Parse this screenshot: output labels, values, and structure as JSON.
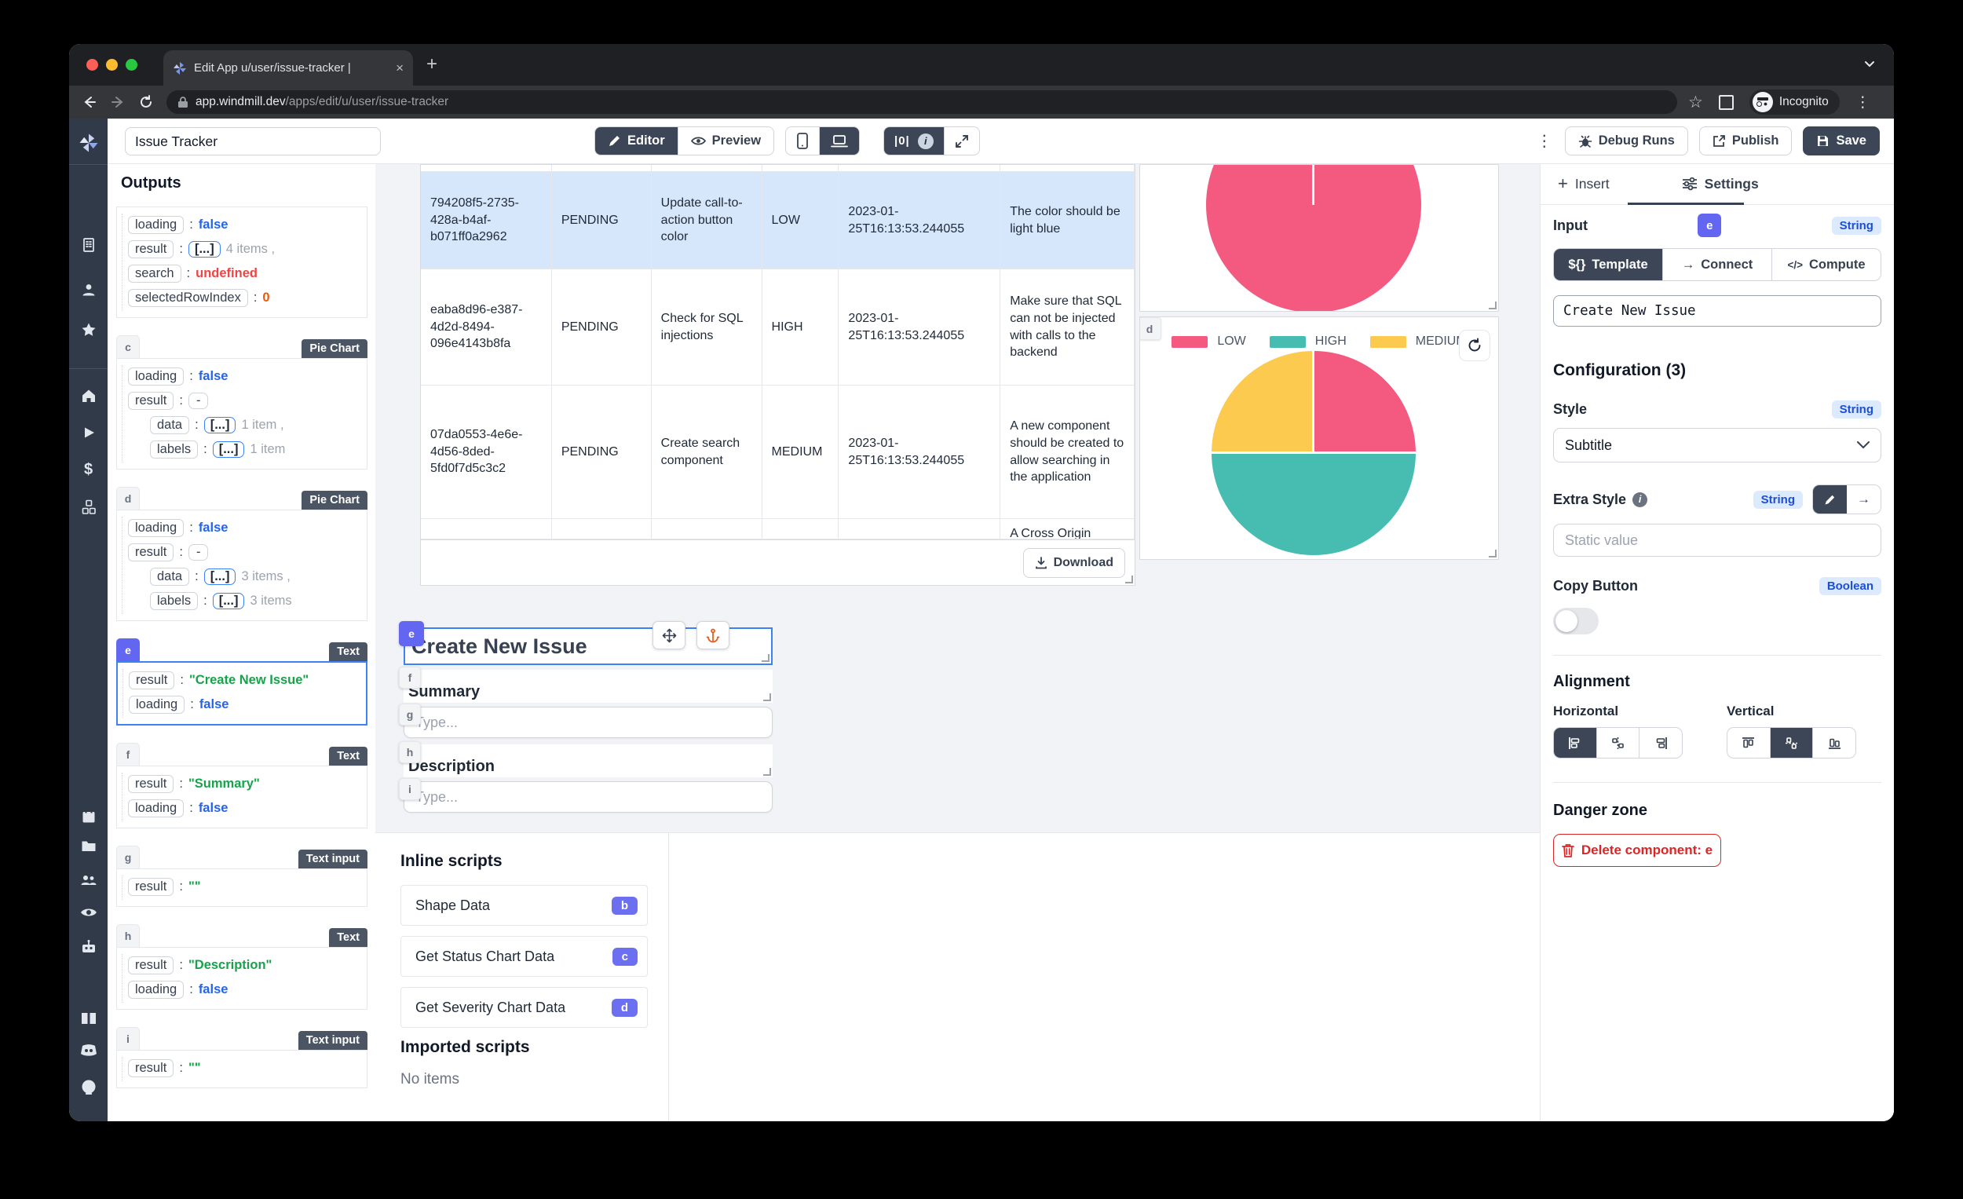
{
  "browser": {
    "tab_title": "Edit App u/user/issue-tracker |",
    "url_host": "app.windmill.dev",
    "url_path": "/apps/edit/u/user/issue-tracker",
    "incognito_label": "Incognito"
  },
  "icons": {
    "plus": "+",
    "close": "×",
    "dots_v": "⋮",
    "star": "☆",
    "dollar": "$",
    "arrow_right": "→",
    "info": "i",
    "zero_pipes": "|0|",
    "template_sigil": "${}",
    "compute_sigil": "</>"
  },
  "topbar": {
    "app_name": "Issue Tracker",
    "editor": "Editor",
    "preview": "Preview",
    "debug_runs": "Debug Runs",
    "publish": "Publish",
    "save": "Save"
  },
  "outputs": {
    "title": "Outputs",
    "cards": [
      {
        "badge": null,
        "type": null,
        "selected": false,
        "rows": [
          {
            "key": "loading",
            "value": "false",
            "vclass": "bool"
          },
          {
            "key": "result",
            "value": "[...]",
            "vclass": "pill",
            "suffix": "4 items ,"
          },
          {
            "key": "search",
            "value": "undefined",
            "vclass": "undef"
          },
          {
            "key": "selectedRowIndex",
            "value": "0",
            "vclass": "num"
          }
        ]
      },
      {
        "badge": "c",
        "type": "Pie Chart",
        "selected": false,
        "rows": [
          {
            "key": "loading",
            "value": "false",
            "vclass": "bool"
          },
          {
            "key": "result",
            "value": "-",
            "vclass": "dash"
          },
          {
            "key": "data",
            "value": "[...]",
            "vclass": "pill",
            "suffix": "1 item ,",
            "indent": true
          },
          {
            "key": "labels",
            "value": "[...]",
            "vclass": "pill",
            "suffix": "1 item",
            "indent": true
          }
        ]
      },
      {
        "badge": "d",
        "type": "Pie Chart",
        "selected": false,
        "rows": [
          {
            "key": "loading",
            "value": "false",
            "vclass": "bool"
          },
          {
            "key": "result",
            "value": "-",
            "vclass": "dash"
          },
          {
            "key": "data",
            "value": "[...]",
            "vclass": "pill",
            "suffix": "3 items ,",
            "indent": true
          },
          {
            "key": "labels",
            "value": "[...]",
            "vclass": "pill",
            "suffix": "3 items",
            "indent": true
          }
        ]
      },
      {
        "badge": "e",
        "type": "Text",
        "selected": true,
        "rows": [
          {
            "key": "result",
            "value": "\"Create New Issue\"",
            "vclass": "str"
          },
          {
            "key": "loading",
            "value": "false",
            "vclass": "bool"
          }
        ]
      },
      {
        "badge": "f",
        "type": "Text",
        "selected": false,
        "rows": [
          {
            "key": "result",
            "value": "\"Summary\"",
            "vclass": "str"
          },
          {
            "key": "loading",
            "value": "false",
            "vclass": "bool"
          }
        ]
      },
      {
        "badge": "g",
        "type": "Text input",
        "selected": false,
        "rows": [
          {
            "key": "result",
            "value": "\"\"",
            "vclass": "str"
          }
        ]
      },
      {
        "badge": "h",
        "type": "Text",
        "selected": false,
        "rows": [
          {
            "key": "result",
            "value": "\"Description\"",
            "vclass": "str"
          },
          {
            "key": "loading",
            "value": "false",
            "vclass": "bool"
          }
        ]
      },
      {
        "badge": "i",
        "type": "Text input",
        "selected": false,
        "rows": [
          {
            "key": "result",
            "value": "\"\"",
            "vclass": "str"
          }
        ]
      }
    ]
  },
  "canvas": {
    "table": {
      "rows": [
        [
          "794208f5-2735-428a-b4af-b071ff0a2962",
          "PENDING",
          "Update call-to-action button color",
          "LOW",
          "2023-01-25T16:13:53.244055",
          "The color should be light blue"
        ],
        [
          "eaba8d96-e387-4d2d-8494-096e4143b8fa",
          "PENDING",
          "Check for SQL injections",
          "HIGH",
          "2023-01-25T16:13:53.244055",
          "Make sure that SQL can not be injected with calls to the backend"
        ],
        [
          "07da0553-4e6e-4d56-8ded-5fd0f7d5c3c2",
          "PENDING",
          "Create search component",
          "MEDIUM",
          "2023-01-25T16:13:53.244055",
          "A new component should be created to allow searching in the application"
        ]
      ],
      "partial_cell": "A Cross Origin",
      "download": "Download"
    },
    "legend": [
      {
        "label": "LOW",
        "color": "#f4597f"
      },
      {
        "label": "HIGH",
        "color": "#47bdb2"
      },
      {
        "label": "MEDIUM",
        "color": "#fbca4f"
      }
    ],
    "badge_d": "d"
  },
  "form": {
    "badge_e": "e",
    "badge_f": "f",
    "badge_g": "g",
    "badge_h": "h",
    "badge_i": "i",
    "title": "Create New Issue",
    "summary": "Summary",
    "description": "Description",
    "placeholder": "Type..."
  },
  "scripts": {
    "inline_title": "Inline scripts",
    "items": [
      {
        "label": "Shape Data",
        "badge": "b"
      },
      {
        "label": "Get Status Chart Data",
        "badge": "c"
      },
      {
        "label": "Get Severity Chart Data",
        "badge": "d"
      }
    ],
    "imported_title": "Imported scripts",
    "empty": "No items"
  },
  "settings": {
    "insert_tab": "Insert",
    "settings_tab": "Settings",
    "input_label": "Input",
    "component_badge": "e",
    "type_string": "String",
    "type_boolean": "Boolean",
    "seg_template": "Template",
    "seg_connect": "Connect",
    "seg_compute": "Compute",
    "template_value": "Create New Issue",
    "configuration": "Configuration (3)",
    "style_label": "Style",
    "style_value": "Subtitle",
    "extra_style_label": "Extra Style",
    "static_placeholder": "Static value",
    "copy_button_label": "Copy Button",
    "alignment": "Alignment",
    "horizontal": "Horizontal",
    "vertical": "Vertical",
    "danger": "Danger zone",
    "delete_label": "Delete component: e"
  },
  "colors": {
    "accent_indigo": "#6366f1",
    "accent_blue": "#3b82f6",
    "dark_button": "#3c4656",
    "pie_pink": "#f4597f",
    "pie_teal": "#47bdb2",
    "pie_yellow": "#fbca4f",
    "danger_red": "#dc2626",
    "selected_row": "#d7e7fb"
  },
  "chart_data": [
    {
      "type": "pie",
      "name": "status-pie",
      "legend_visible": false,
      "fractions": [
        1.0
      ],
      "colors": [
        "#f4597f"
      ]
    },
    {
      "type": "pie",
      "name": "severity-pie",
      "legend_position": "top",
      "categories": [
        "LOW",
        "HIGH",
        "MEDIUM"
      ],
      "values": [
        1,
        2,
        1
      ],
      "fractions": [
        0.25,
        0.5,
        0.25
      ],
      "colors": [
        "#f4597f",
        "#47bdb2",
        "#fbca4f"
      ]
    }
  ]
}
